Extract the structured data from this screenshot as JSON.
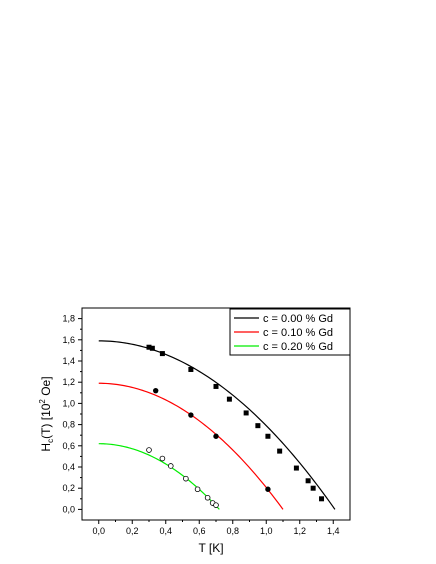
{
  "chart_data": {
    "type": "scatter",
    "title": "",
    "xlabel": "T [K]",
    "ylabel_parts": {
      "main": "H",
      "sub": "c",
      "mid": "(T) [10",
      "sup": "2",
      "end": " Oe]"
    },
    "xlim": [
      -0.1,
      1.5
    ],
    "ylim": [
      -0.1,
      1.9
    ],
    "x_ticks": [
      "0,0",
      "0,2",
      "0,4",
      "0,6",
      "0,8",
      "1,0",
      "1,2",
      "1,4"
    ],
    "y_ticks": [
      "0,0",
      "0,2",
      "0,4",
      "0,6",
      "0,8",
      "1,0",
      "1,2",
      "1,4",
      "1,6",
      "1,8"
    ],
    "legend_position": "top-right",
    "series": [
      {
        "name": "c = 0.00 % Gd",
        "color": "#000000",
        "marker": "filled-square",
        "fit": {
          "H0": 1.59,
          "Tc": 1.41
        },
        "points": [
          [
            0.3,
            1.53
          ],
          [
            0.32,
            1.52
          ],
          [
            0.38,
            1.47
          ],
          [
            0.55,
            1.32
          ],
          [
            0.7,
            1.16
          ],
          [
            0.78,
            1.04
          ],
          [
            0.88,
            0.91
          ],
          [
            0.95,
            0.79
          ],
          [
            1.01,
            0.69
          ],
          [
            1.08,
            0.55
          ],
          [
            1.18,
            0.39
          ],
          [
            1.25,
            0.27
          ],
          [
            1.28,
            0.2
          ],
          [
            1.33,
            0.1
          ]
        ]
      },
      {
        "name": "c = 0.10 % Gd",
        "color": "#ff0000",
        "marker": "filled-circle",
        "fit": {
          "H0": 1.19,
          "Tc": 1.1
        },
        "points": [
          [
            0.34,
            1.12
          ],
          [
            0.55,
            0.89
          ],
          [
            0.7,
            0.69
          ],
          [
            1.01,
            0.19
          ]
        ]
      },
      {
        "name": "c = 0.20 % Gd",
        "color": "#00ee00",
        "marker": "open-circle",
        "fit": {
          "H0": 0.62,
          "Tc": 0.72
        },
        "points": [
          [
            0.3,
            0.56
          ],
          [
            0.38,
            0.48
          ],
          [
            0.43,
            0.41
          ],
          [
            0.52,
            0.29
          ],
          [
            0.59,
            0.19
          ],
          [
            0.65,
            0.11
          ],
          [
            0.68,
            0.06
          ],
          [
            0.7,
            0.04
          ]
        ]
      }
    ]
  }
}
